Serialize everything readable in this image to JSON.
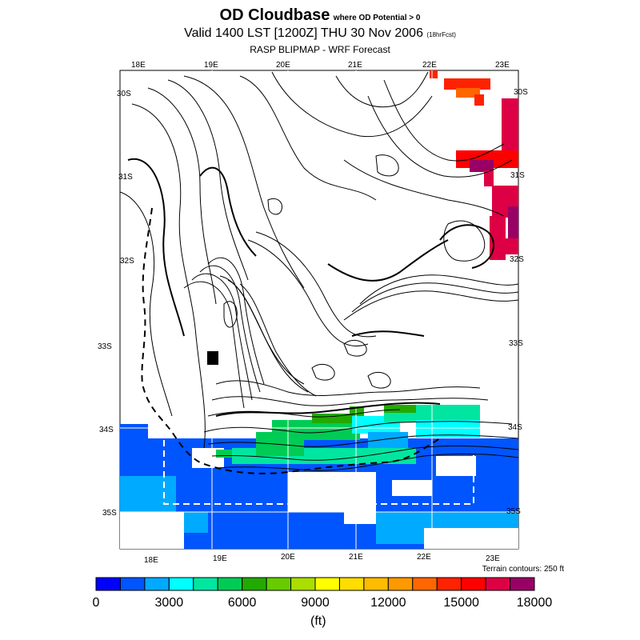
{
  "header": {
    "title": "OD Cloudbase",
    "title_suffix": "where OD Potential > 0",
    "valid_line": "Valid 1400 LST [1200Z] THU 30 Nov 2006",
    "valid_suffix": "(18hrFcst)",
    "source": "RASP BLIPMAP - WRF Forecast"
  },
  "map": {
    "top_lon_labels": [
      "18E",
      "19E",
      "20E",
      "21E",
      "22E",
      "23E"
    ],
    "bottom_lon_labels": [
      "18E",
      "19E",
      "20E",
      "21E",
      "22E",
      "23E"
    ],
    "left_lat_labels": [
      "30S",
      "31S",
      "32S",
      "33S",
      "34S",
      "35S"
    ],
    "right_lat_labels": [
      "30S",
      "31S",
      "32S",
      "33S",
      "34S",
      "35S"
    ],
    "terrain_note": "Terrain contours: 250 ft"
  },
  "colorbar": {
    "colors": [
      "#0000ff",
      "#0055ff",
      "#00aaff",
      "#00ffff",
      "#00e6a0",
      "#00cc55",
      "#22aa00",
      "#66cc00",
      "#aadd00",
      "#ffff00",
      "#ffdd00",
      "#ffbb00",
      "#ff9900",
      "#ff6600",
      "#ff2200",
      "#ff0000",
      "#dd0044",
      "#990066"
    ],
    "tick_labels": [
      "0",
      "3000",
      "6000",
      "9000",
      "12000",
      "15000",
      "18000"
    ],
    "unit": "(ft)"
  }
}
